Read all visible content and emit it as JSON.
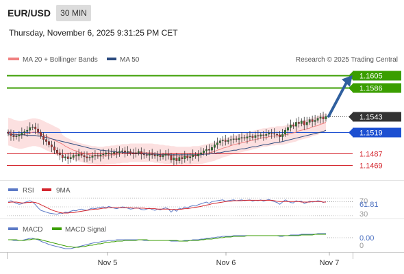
{
  "header": {
    "symbol": "EUR/USD",
    "timeframe": "30 MIN",
    "datetime": "Thursday, November 6, 2025 9:31:25 PM CET"
  },
  "legend": {
    "ma20_label": "MA 20 + Bollinger Bands",
    "ma50_label": "MA 50",
    "ma20_color": "#f08080",
    "ma50_color": "#2b4a7e",
    "copyright": "Research © 2025 Trading Central"
  },
  "colors": {
    "target": "#3a9e00",
    "pivot": "#1c4fd1",
    "support": "#d4262e",
    "last": "#333333",
    "arrow": "#2f5f9e",
    "candle_up": "#2d7a2d",
    "candle_down": "#b03030",
    "band_fill": "#fbd6d6"
  },
  "chart_data": [
    {
      "type": "candlestick",
      "title": "EUR/USD 30 MIN",
      "ylim": [
        1.1455,
        1.1615
      ],
      "x_ticks": [
        "Nov 5",
        "Nov 6",
        "Nov 7"
      ],
      "levels": [
        {
          "label": "1.1605",
          "value": 1.1605,
          "kind": "target"
        },
        {
          "label": "1.1586",
          "value": 1.1586,
          "kind": "target"
        },
        {
          "label": "1.1543",
          "value": 1.1543,
          "kind": "last"
        },
        {
          "label": "1.1519",
          "value": 1.1519,
          "kind": "pivot"
        },
        {
          "label": "1.1487",
          "value": 1.1487,
          "kind": "support"
        },
        {
          "label": "1.1469",
          "value": 1.1469,
          "kind": "support"
        }
      ],
      "close": [
        1.1517,
        1.1514,
        1.1512,
        1.1513,
        1.1515,
        1.1518,
        1.152,
        1.1522,
        1.1526,
        1.1527,
        1.1524,
        1.1519,
        1.1513,
        1.1508,
        1.1505,
        1.15,
        1.1497,
        1.1492,
        1.1488,
        1.1485,
        1.148,
        1.1482,
        1.1479,
        1.1481,
        1.1484,
        1.1483,
        1.1486,
        1.1484,
        1.1482,
        1.148,
        1.1481,
        1.1483,
        1.1484,
        1.1483,
        1.1485,
        1.1486,
        1.1488,
        1.1486,
        1.1487,
        1.1489,
        1.1488,
        1.149,
        1.1491,
        1.1489,
        1.149,
        1.1488,
        1.1487,
        1.1488,
        1.149,
        1.1486,
        1.1485,
        1.1484,
        1.1486,
        1.1485,
        1.1483,
        1.1485,
        1.1482,
        1.1484,
        1.1486,
        1.1484,
        1.1477,
        1.148,
        1.1476,
        1.1481,
        1.1479,
        1.1483,
        1.148,
        1.1482,
        1.1485,
        1.1483,
        1.1486,
        1.1488,
        1.1491,
        1.1493,
        1.1492,
        1.1496,
        1.15,
        1.1503,
        1.1506,
        1.1507,
        1.1505,
        1.1507,
        1.1508,
        1.1509,
        1.1508,
        1.151,
        1.1511,
        1.151,
        1.1512,
        1.1513,
        1.1511,
        1.1514,
        1.1513,
        1.1515,
        1.1514,
        1.1516,
        1.1518,
        1.1517,
        1.1516,
        1.1515,
        1.1512,
        1.1516,
        1.1522,
        1.1526,
        1.153,
        1.1528,
        1.1534,
        1.1532,
        1.1536,
        1.153,
        1.1534,
        1.1538,
        1.1535,
        1.1537,
        1.154,
        1.1542,
        1.1539,
        1.1543
      ],
      "ma20": [
        1.152,
        1.1519,
        1.1517,
        1.1516,
        1.1515,
        1.1515,
        1.1516,
        1.1517,
        1.1518,
        1.1519,
        1.1519,
        1.1518,
        1.1517,
        1.1515,
        1.1513,
        1.1511,
        1.1509,
        1.1507,
        1.1505,
        1.1503,
        1.1501,
        1.1498,
        1.1496,
        1.1494,
        1.1492,
        1.1491,
        1.1489,
        1.1488,
        1.1487,
        1.1486,
        1.1485,
        1.1484,
        1.1484,
        1.1483,
        1.1483,
        1.1483,
        1.1484,
        1.1484,
        1.1485,
        1.1485,
        1.1486,
        1.1486,
        1.1487,
        1.1487,
        1.1487,
        1.1488,
        1.1488,
        1.1488,
        1.1488,
        1.1488,
        1.1488,
        1.1488,
        1.1488,
        1.1488,
        1.1487,
        1.1487,
        1.1486,
        1.1486,
        1.1485,
        1.1485,
        1.1484,
        1.1484,
        1.1483,
        1.1483,
        1.1483,
        1.1483,
        1.1483,
        1.1483,
        1.1484,
        1.1484,
        1.1484,
        1.1485,
        1.1486,
        1.1487,
        1.1488,
        1.1489,
        1.149,
        1.1492,
        1.1493,
        1.1495,
        1.1496,
        1.1497,
        1.1499,
        1.15,
        1.1501,
        1.1502,
        1.1503,
        1.1504,
        1.1505,
        1.1506,
        1.1507,
        1.1508,
        1.1509,
        1.151,
        1.1511,
        1.1511,
        1.1512,
        1.1513,
        1.1513,
        1.1514,
        1.1514,
        1.1514,
        1.1515,
        1.1516,
        1.1517,
        1.1518,
        1.1519,
        1.1521,
        1.1522,
        1.1523,
        1.1524,
        1.1525,
        1.1527,
        1.1528,
        1.1529,
        1.1531,
        1.1532,
        1.1534
      ],
      "ma50": [
        1.1516,
        1.1516,
        1.1515,
        1.1515,
        1.1515,
        1.1515,
        1.1515,
        1.1514,
        1.1514,
        1.1514,
        1.1514,
        1.1513,
        1.1513,
        1.1512,
        1.1511,
        1.151,
        1.1509,
        1.1508,
        1.1507,
        1.1506,
        1.1505,
        1.1504,
        1.1503,
        1.1502,
        1.1501,
        1.15,
        1.1499,
        1.1498,
        1.1497,
        1.1496,
        1.1495,
        1.1494,
        1.1494,
        1.1493,
        1.1492,
        1.1492,
        1.1491,
        1.1491,
        1.149,
        1.149,
        1.1489,
        1.1489,
        1.1489,
        1.1488,
        1.1488,
        1.1488,
        1.1488,
        1.1487,
        1.1487,
        1.1487,
        1.1487,
        1.1486,
        1.1486,
        1.1486,
        1.1486,
        1.1486,
        1.1485,
        1.1485,
        1.1485,
        1.1485,
        1.1485,
        1.1485,
        1.1485,
        1.1485,
        1.1485,
        1.1485,
        1.1485,
        1.1485,
        1.1485,
        1.1485,
        1.1485,
        1.1485,
        1.1486,
        1.1486,
        1.1486,
        1.1487,
        1.1487,
        1.1488,
        1.1488,
        1.1489,
        1.149,
        1.149,
        1.1491,
        1.1492,
        1.1492,
        1.1493,
        1.1494,
        1.1494,
        1.1495,
        1.1496,
        1.1497,
        1.1497,
        1.1498,
        1.1499,
        1.15,
        1.15,
        1.1501,
        1.1502,
        1.1503,
        1.1503,
        1.1504,
        1.1505,
        1.1506,
        1.1507,
        1.1508,
        1.1509,
        1.151,
        1.1511,
        1.1512,
        1.1513,
        1.1514,
        1.1515,
        1.1516,
        1.1517,
        1.1518,
        1.1519,
        1.152,
        1.1522
      ],
      "band_width": 0.0014,
      "projection": {
        "from": 1.1543,
        "to": 1.1605
      }
    },
    {
      "type": "line",
      "title": "RSI",
      "series": [
        {
          "name": "RSI"
        },
        {
          "name": "9MA"
        }
      ],
      "ylim": [
        25,
        75
      ],
      "tick_labels": [
        "70",
        "61.81",
        "30"
      ],
      "last_value": 61.81,
      "rsi": [
        62,
        64,
        61,
        58,
        56,
        57,
        60,
        62,
        64,
        61,
        55,
        48,
        42,
        40,
        38,
        36,
        35,
        34,
        33,
        36,
        35,
        38,
        37,
        40,
        42,
        41,
        44,
        45,
        43,
        42,
        45,
        47,
        46,
        48,
        49,
        50,
        48,
        51,
        49,
        47,
        46,
        48,
        50,
        49,
        47,
        45,
        46,
        48,
        47,
        44,
        43,
        45,
        47,
        44,
        42,
        45,
        43,
        46,
        48,
        45,
        38,
        44,
        40,
        47,
        45,
        50,
        48,
        51,
        53,
        52,
        55,
        57,
        59,
        61,
        58,
        62,
        63,
        64,
        65,
        66,
        63,
        64,
        65,
        66,
        64,
        65,
        66,
        64,
        65,
        66,
        63,
        65,
        64,
        66,
        63,
        65,
        67,
        64,
        62,
        60,
        56,
        61,
        66,
        63,
        60,
        59,
        64,
        62,
        63,
        58,
        60,
        63,
        61,
        62,
        64,
        63,
        60,
        62
      ],
      "ma9": [
        60,
        61,
        61,
        61,
        60,
        59,
        59,
        60,
        60,
        61,
        60,
        58,
        55,
        52,
        49,
        46,
        43,
        41,
        39,
        37,
        36,
        36,
        36,
        37,
        37,
        38,
        39,
        40,
        41,
        42,
        43,
        44,
        45,
        45,
        46,
        47,
        47,
        48,
        48,
        48,
        48,
        48,
        48,
        48,
        48,
        48,
        47,
        47,
        47,
        47,
        47,
        46,
        46,
        46,
        46,
        45,
        45,
        45,
        45,
        45,
        44,
        44,
        44,
        44,
        45,
        46,
        46,
        47,
        48,
        49,
        50,
        51,
        53,
        54,
        55,
        57,
        58,
        59,
        60,
        61,
        62,
        63,
        63,
        64,
        64,
        64,
        64,
        65,
        65,
        65,
        65,
        65,
        65,
        65,
        65,
        65,
        65,
        65,
        64,
        63,
        62,
        62,
        62,
        62,
        62,
        62,
        62,
        62,
        61,
        61,
        61,
        61,
        62,
        62,
        62,
        62,
        61,
        61
      ]
    },
    {
      "type": "line",
      "title": "MACD",
      "series": [
        {
          "name": "MACD"
        },
        {
          "name": "MACD Signal"
        }
      ],
      "ylim": [
        -0.002,
        0.001
      ],
      "tick_labels": [
        "0.00",
        "0"
      ],
      "macd": [
        0.0,
        0.0,
        -0.0001,
        -0.0001,
        -0.0001,
        -0.0001,
        0.0,
        0.0001,
        0.0002,
        0.0002,
        0.0001,
        0.0,
        -0.0002,
        -0.0004,
        -0.0005,
        -0.0007,
        -0.0008,
        -0.0009,
        -0.001,
        -0.0011,
        -0.0012,
        -0.0013,
        -0.0013,
        -0.0013,
        -0.0012,
        -0.0011,
        -0.001,
        -0.0009,
        -0.0008,
        -0.0007,
        -0.0006,
        -0.0005,
        -0.0004,
        -0.0004,
        -0.0003,
        -0.0002,
        -0.0002,
        -0.0001,
        -0.0001,
        -0.0001,
        0.0,
        0.0,
        0.0,
        0.0,
        0.0,
        0.0,
        0.0,
        0.0,
        0.0,
        0.0,
        -0.0001,
        -0.0001,
        -0.0001,
        -0.0001,
        -0.0001,
        -0.0001,
        -0.0001,
        -0.0001,
        -0.0001,
        -0.0001,
        -0.0002,
        -0.0002,
        -0.0002,
        -0.0002,
        -0.0002,
        -0.0001,
        -0.0001,
        -0.0001,
        0.0,
        0.0,
        0.0,
        0.0001,
        0.0001,
        0.0002,
        0.0002,
        0.0003,
        0.0003,
        0.0004,
        0.0004,
        0.0005,
        0.0005,
        0.0005,
        0.0005,
        0.0006,
        0.0006,
        0.0006,
        0.0006,
        0.0006,
        0.0006,
        0.0006,
        0.0006,
        0.0006,
        0.0006,
        0.0006,
        0.0006,
        0.0006,
        0.0006,
        0.0006,
        0.0006,
        0.0006,
        0.0005,
        0.0005,
        0.0006,
        0.0006,
        0.0007,
        0.0007,
        0.0007,
        0.0007,
        0.0008,
        0.0008,
        0.0008,
        0.0008,
        0.0008,
        0.0008,
        0.0009,
        0.0009,
        0.0009,
        0.0009
      ],
      "signal": [
        0.0,
        0.0,
        0.0,
        0.0,
        -0.0001,
        -0.0001,
        -0.0001,
        0.0,
        0.0,
        0.0001,
        0.0001,
        0.0001,
        0.0,
        -0.0001,
        -0.0002,
        -0.0003,
        -0.0004,
        -0.0005,
        -0.0006,
        -0.0007,
        -0.0008,
        -0.0009,
        -0.001,
        -0.001,
        -0.0011,
        -0.0011,
        -0.0011,
        -0.001,
        -0.001,
        -0.0009,
        -0.0008,
        -0.0008,
        -0.0007,
        -0.0006,
        -0.0006,
        -0.0005,
        -0.0004,
        -0.0004,
        -0.0003,
        -0.0003,
        -0.0002,
        -0.0002,
        -0.0002,
        -0.0001,
        -0.0001,
        -0.0001,
        -0.0001,
        -0.0001,
        0.0,
        0.0,
        0.0,
        0.0,
        -0.0001,
        -0.0001,
        -0.0001,
        -0.0001,
        -0.0001,
        -0.0001,
        -0.0001,
        -0.0001,
        -0.0001,
        -0.0001,
        -0.0001,
        -0.0002,
        -0.0002,
        -0.0002,
        -0.0002,
        -0.0001,
        -0.0001,
        -0.0001,
        -0.0001,
        0.0,
        0.0,
        0.0001,
        0.0001,
        0.0001,
        0.0002,
        0.0002,
        0.0003,
        0.0003,
        0.0004,
        0.0004,
        0.0004,
        0.0005,
        0.0005,
        0.0005,
        0.0005,
        0.0005,
        0.0006,
        0.0006,
        0.0006,
        0.0006,
        0.0006,
        0.0006,
        0.0006,
        0.0006,
        0.0006,
        0.0006,
        0.0006,
        0.0006,
        0.0006,
        0.0006,
        0.0006,
        0.0006,
        0.0006,
        0.0006,
        0.0006,
        0.0006,
        0.0007,
        0.0007,
        0.0007,
        0.0007,
        0.0007,
        0.0008,
        0.0008,
        0.0008,
        0.0008,
        0.0008
      ]
    }
  ]
}
